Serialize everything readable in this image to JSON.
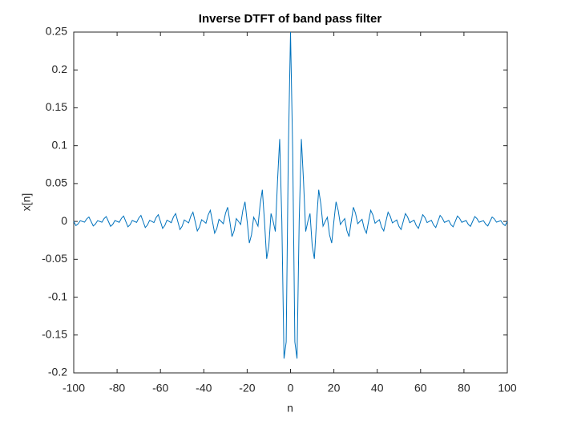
{
  "chart_data": {
    "type": "line",
    "title": "Inverse DTFT of band pass filter",
    "x_label": "n",
    "y_label": "x[n]",
    "xlim": [
      -100,
      100
    ],
    "ylim": [
      -0.2,
      0.25
    ],
    "xticks": [
      -100,
      -80,
      -60,
      -40,
      -20,
      0,
      20,
      40,
      60,
      80,
      100
    ],
    "yticks": [
      -0.2,
      -0.15,
      -0.1,
      -0.05,
      0,
      0.05,
      0.1,
      0.15,
      0.2,
      0.25
    ],
    "grid": false,
    "x": [
      -100,
      -99,
      -98,
      -97,
      -96,
      -95,
      -94,
      -93,
      -92,
      -91,
      -90,
      -89,
      -88,
      -87,
      -86,
      -85,
      -84,
      -83,
      -82,
      -81,
      -80,
      -79,
      -78,
      -77,
      -76,
      -75,
      -74,
      -73,
      -72,
      -71,
      -70,
      -69,
      -68,
      -67,
      -66,
      -65,
      -64,
      -63,
      -62,
      -61,
      -60,
      -59,
      -58,
      -57,
      -56,
      -55,
      -54,
      -53,
      -52,
      -51,
      -50,
      -49,
      -48,
      -47,
      -46,
      -45,
      -44,
      -43,
      -42,
      -41,
      -40,
      -39,
      -38,
      -37,
      -36,
      -35,
      -34,
      -33,
      -32,
      -31,
      -30,
      -29,
      -28,
      -27,
      -26,
      -25,
      -24,
      -23,
      -22,
      -21,
      -20,
      -19,
      -18,
      -17,
      -16,
      -15,
      -14,
      -13,
      -12,
      -11,
      -10,
      -9,
      -8,
      -7,
      -6,
      -5,
      -4,
      -3,
      -2,
      -1,
      0,
      1,
      2,
      3,
      4,
      5,
      6,
      7,
      8,
      9,
      10,
      11,
      12,
      13,
      14,
      15,
      16,
      17,
      18,
      19,
      20,
      21,
      22,
      23,
      24,
      25,
      26,
      27,
      28,
      29,
      30,
      31,
      32,
      33,
      34,
      35,
      36,
      37,
      38,
      39,
      40,
      41,
      42,
      43,
      44,
      45,
      46,
      47,
      48,
      49,
      50,
      51,
      52,
      53,
      54,
      55,
      56,
      57,
      58,
      59,
      60,
      61,
      62,
      63,
      64,
      65,
      66,
      67,
      68,
      69,
      70,
      71,
      72,
      73,
      74,
      75,
      76,
      77,
      78,
      79,
      80,
      81,
      82,
      83,
      84,
      85,
      86,
      87,
      88,
      89,
      90,
      91,
      92,
      93,
      94,
      95,
      96,
      97,
      98,
      99,
      100
    ],
    "series": [
      {
        "color": "#0072bd",
        "values": [
          0,
          -0.0055,
          -0.0032,
          0.001,
          0,
          -0.001,
          0.0034,
          0.0058,
          0,
          -0.006,
          -0.0035,
          0.001,
          0,
          -0.0011,
          0.0037,
          0.0064,
          0,
          -0.0065,
          -0.0039,
          0.0012,
          0,
          -0.0012,
          0.0041,
          0.0071,
          0,
          -0.0072,
          -0.0043,
          0.0013,
          0,
          -0.0013,
          0.0045,
          0.0079,
          0,
          -0.0081,
          -0.0048,
          0.0014,
          0,
          -0.0015,
          0.0051,
          0.0089,
          0,
          -0.0092,
          -0.0055,
          0.0016,
          0,
          -0.0017,
          0.0059,
          0.0103,
          0,
          -0.0107,
          -0.0064,
          0.0019,
          0,
          -0.002,
          0.0069,
          0.0121,
          0,
          -0.0126,
          -0.0076,
          0.0023,
          0,
          -0.0024,
          0.0084,
          0.0147,
          0,
          -0.0155,
          -0.0094,
          0.0028,
          0,
          -0.003,
          0.0106,
          0.0187,
          0,
          -0.0201,
          -0.0122,
          0.0037,
          0,
          -0.0041,
          0.0145,
          0.0259,
          0,
          -0.0286,
          -0.0177,
          0.0055,
          0,
          -0.0062,
          0.0227,
          0.0418,
          0,
          -0.0494,
          -0.0318,
          0.0104,
          0,
          -0.0133,
          0.0531,
          0.1087,
          0,
          -0.1811,
          -0.1592,
          0.0932,
          0.25,
          0.0932,
          -0.1592,
          -0.1811,
          0,
          0.1087,
          0.0531,
          -0.0133,
          0,
          0.0104,
          -0.0318,
          -0.0494,
          0,
          0.0418,
          0.0227,
          -0.0062,
          0,
          0.0055,
          -0.0177,
          -0.0286,
          0,
          0.0259,
          0.0145,
          -0.0041,
          0,
          0.0037,
          -0.0122,
          -0.0201,
          0,
          0.0187,
          0.0106,
          -0.003,
          0,
          0.0028,
          -0.0094,
          -0.0155,
          0,
          0.0147,
          0.0084,
          -0.0024,
          0,
          0.0023,
          -0.0076,
          -0.0126,
          0,
          0.0121,
          0.0069,
          -0.002,
          0,
          0.0019,
          -0.0064,
          -0.0107,
          0,
          0.0103,
          0.0059,
          -0.0017,
          0,
          0.0016,
          -0.0055,
          -0.0092,
          0,
          0.0089,
          0.0051,
          -0.0015,
          0,
          0.0014,
          -0.0048,
          -0.0081,
          0,
          0.0079,
          0.0045,
          -0.0013,
          0,
          0.0013,
          -0.0043,
          -0.0072,
          0,
          0.0071,
          0.0041,
          -0.0012,
          0,
          0.0012,
          -0.0039,
          -0.0065,
          0,
          0.0064,
          0.0037,
          -0.0011,
          0,
          0.001,
          -0.0035,
          -0.006,
          0,
          0.0058,
          0.0034,
          -0.001,
          0,
          0.001,
          -0.0032,
          -0.0055,
          0
        ]
      }
    ]
  }
}
